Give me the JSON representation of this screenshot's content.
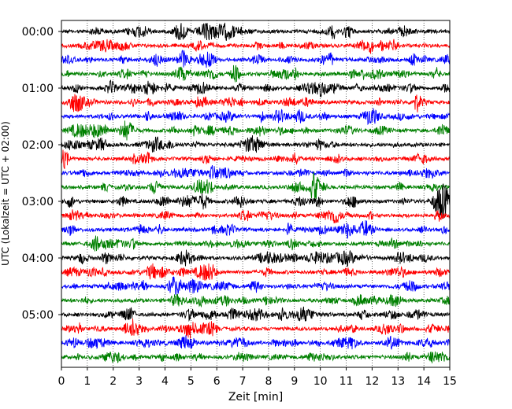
{
  "chart_data": {
    "type": "line",
    "xlabel": "Zeit  [min]",
    "ylabel": "UTC (Lokalzeit = UTC + 02:00)",
    "xlim": [
      0,
      15
    ],
    "xticks": [
      0,
      1,
      2,
      3,
      4,
      5,
      6,
      7,
      8,
      9,
      10,
      11,
      12,
      13,
      14,
      15
    ],
    "y_tick_labels": [
      "00:00",
      "01:00",
      "02:00",
      "03:00",
      "04:00",
      "05:00"
    ],
    "trace_interval_min": 15,
    "trace_count": 24,
    "trace_colors": [
      "#000000",
      "#ff0000",
      "#0000ff",
      "#008000"
    ],
    "vertical_grid": true,
    "grid_style": "dotted"
  }
}
